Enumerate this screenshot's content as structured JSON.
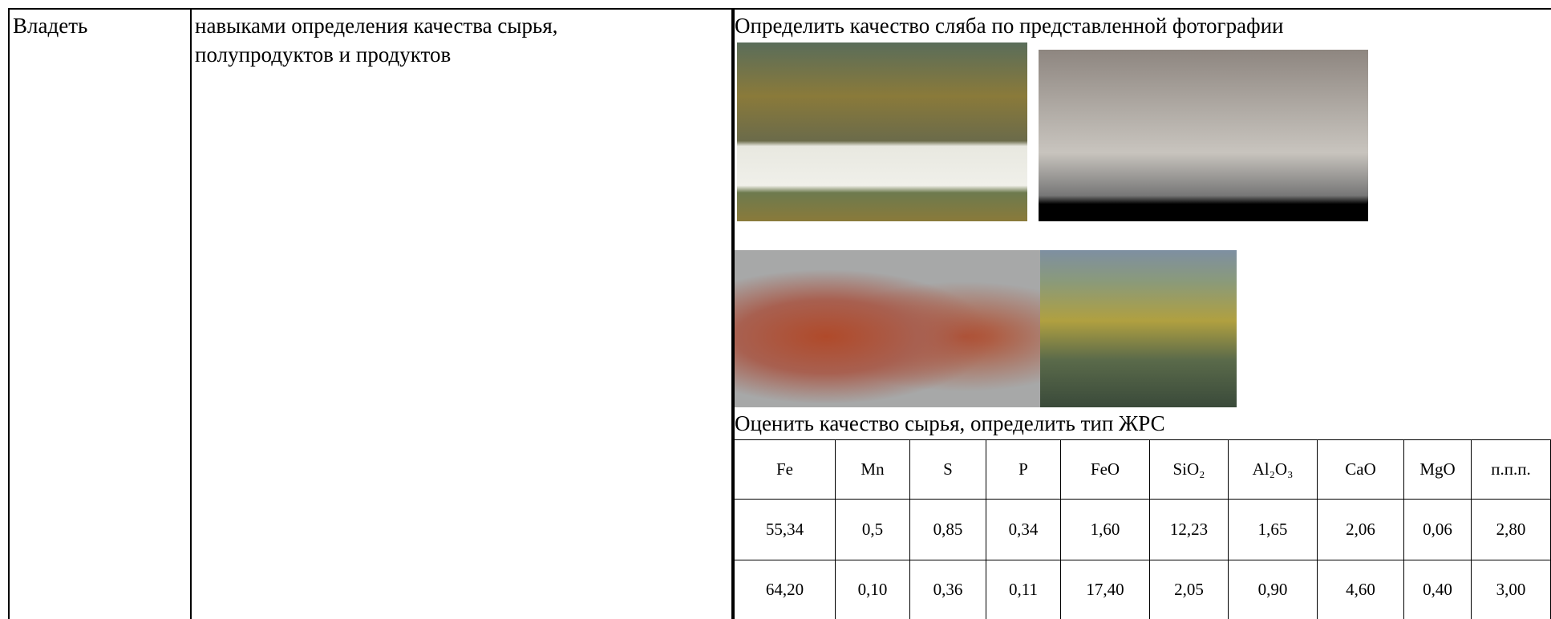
{
  "table": {
    "rows": [
      [
        "Владеть",
        "навыками определения качества сырья, полупродуктов и продуктов"
      ]
    ]
  },
  "task1": {
    "text": "Определить качество сляба по представленной фотографии"
  },
  "task2": {
    "text": "Оценить качество сырья, определить тип ЖРС",
    "table": {
      "header": [
        "Fe",
        "Mn",
        "S",
        "P",
        "FeO",
        "SiO₂",
        "Al₂O₃",
        "CaO",
        "MgO",
        "п.п.п."
      ],
      "rows": [
        [
          "55,34",
          "0,5",
          "0,85",
          "0,34",
          "1,60",
          "12,23",
          "1,65",
          "2,06",
          "0,06",
          "2,80"
        ],
        [
          "64,20",
          "0,10",
          "0,36",
          "0,11",
          "17,40",
          "2,05",
          "0,90",
          "4,60",
          "0,40",
          "3,00"
        ]
      ]
    }
  }
}
